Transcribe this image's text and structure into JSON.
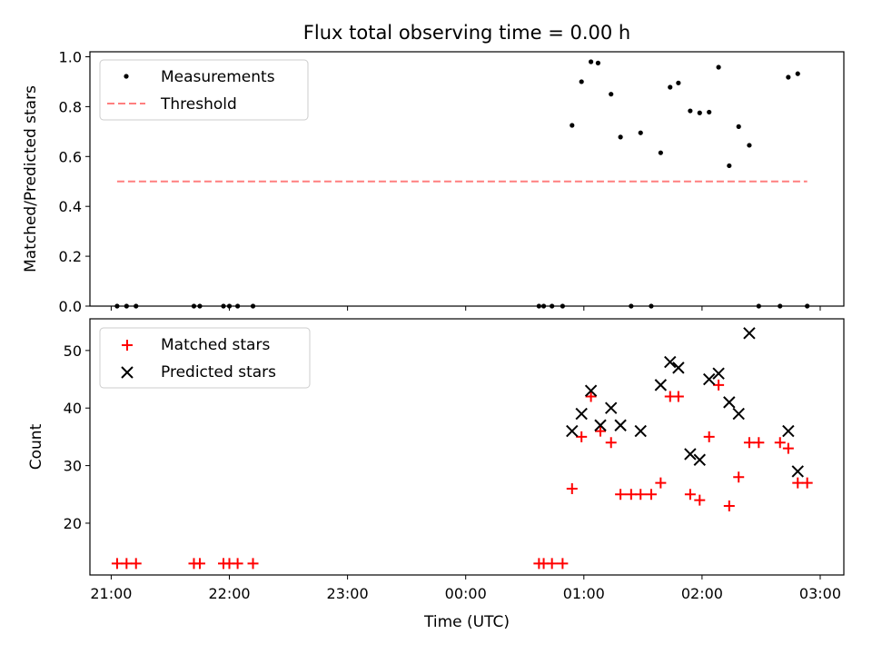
{
  "chart_data": [
    {
      "type": "scatter",
      "title": "Flux total observing time = 0.00 h",
      "ylabel": "Matched/Predicted stars",
      "xlabel": "",
      "xlim": [
        20.82,
        27.2
      ],
      "ylim": [
        0.0,
        1.02
      ],
      "yticks": [
        0.0,
        0.2,
        0.4,
        0.6,
        0.8,
        1.0
      ],
      "ytick_labels": [
        "0.0",
        "0.2",
        "0.4",
        "0.6",
        "0.8",
        "1.0"
      ],
      "legend": "top-left",
      "series": [
        {
          "name": "Measurements",
          "marker": "dot",
          "color": "#000000",
          "x": [
            21.05,
            21.13,
            21.21,
            21.7,
            21.75,
            21.95,
            22.0,
            22.07,
            22.2,
            24.62,
            24.66,
            24.73,
            24.82,
            24.9,
            24.98,
            25.06,
            25.12,
            25.23,
            25.31,
            25.4,
            25.48,
            25.57,
            25.65,
            25.73,
            25.8,
            25.9,
            25.98,
            26.06,
            26.14,
            26.23,
            26.31,
            26.4,
            26.48,
            26.66,
            26.73,
            26.81,
            26.89
          ],
          "y": [
            0,
            0,
            0,
            0,
            0,
            0,
            0,
            0,
            0,
            0,
            0,
            0,
            0,
            0.725,
            0.9,
            0.98,
            0.975,
            0.85,
            0.678,
            0,
            0.695,
            0,
            0.615,
            0.878,
            0.895,
            0.783,
            0.775,
            0.778,
            0.958,
            0.563,
            0.72,
            0.645,
            0,
            0,
            0.918,
            0.932,
            0
          ]
        },
        {
          "name": "Threshold",
          "line": "dashed",
          "color": "#ff7f7f",
          "x": [
            21.05,
            26.89
          ],
          "y": [
            0.5,
            0.5
          ]
        }
      ]
    },
    {
      "type": "scatter",
      "title": "",
      "ylabel": "Count",
      "xlabel": "Time (UTC)",
      "xlim": [
        20.82,
        27.2
      ],
      "ylim": [
        11,
        55.5
      ],
      "yticks": [
        20,
        30,
        40,
        50
      ],
      "ytick_labels": [
        "20",
        "30",
        "40",
        "50"
      ],
      "xticks": [
        21,
        22,
        23,
        24,
        25,
        26,
        27
      ],
      "xtick_labels": [
        "21:00",
        "22:00",
        "23:00",
        "00:00",
        "01:00",
        "02:00",
        "03:00"
      ],
      "legend": "top-left",
      "series": [
        {
          "name": "Matched stars",
          "marker": "plus",
          "color": "#ff0000",
          "x": [
            21.05,
            21.13,
            21.21,
            21.7,
            21.75,
            21.95,
            22.0,
            22.07,
            22.2,
            24.62,
            24.66,
            24.73,
            24.82,
            24.9,
            24.98,
            25.06,
            25.14,
            25.23,
            25.31,
            25.4,
            25.48,
            25.57,
            25.65,
            25.73,
            25.8,
            25.9,
            25.98,
            26.06,
            26.14,
            26.23,
            26.31,
            26.4,
            26.48,
            26.66,
            26.73,
            26.81,
            26.89
          ],
          "y": [
            13,
            13,
            13,
            13,
            13,
            13,
            13,
            13,
            13,
            13,
            13,
            13,
            13,
            26,
            35,
            42,
            36,
            34,
            25,
            25,
            25,
            25,
            27,
            42,
            42,
            25,
            24,
            35,
            44,
            23,
            28,
            34,
            34,
            34,
            33,
            27,
            27
          ]
        },
        {
          "name": "Predicted stars",
          "marker": "x",
          "color": "#000000",
          "x": [
            24.9,
            24.98,
            25.06,
            25.14,
            25.23,
            25.31,
            25.48,
            25.65,
            25.73,
            25.8,
            25.9,
            25.98,
            26.06,
            26.14,
            26.23,
            26.31,
            26.4,
            26.73,
            26.81
          ],
          "y": [
            36,
            39,
            43,
            37,
            40,
            37,
            36,
            44,
            48,
            47,
            32,
            31,
            45,
            46,
            41,
            39,
            53,
            36,
            29
          ]
        }
      ]
    }
  ]
}
